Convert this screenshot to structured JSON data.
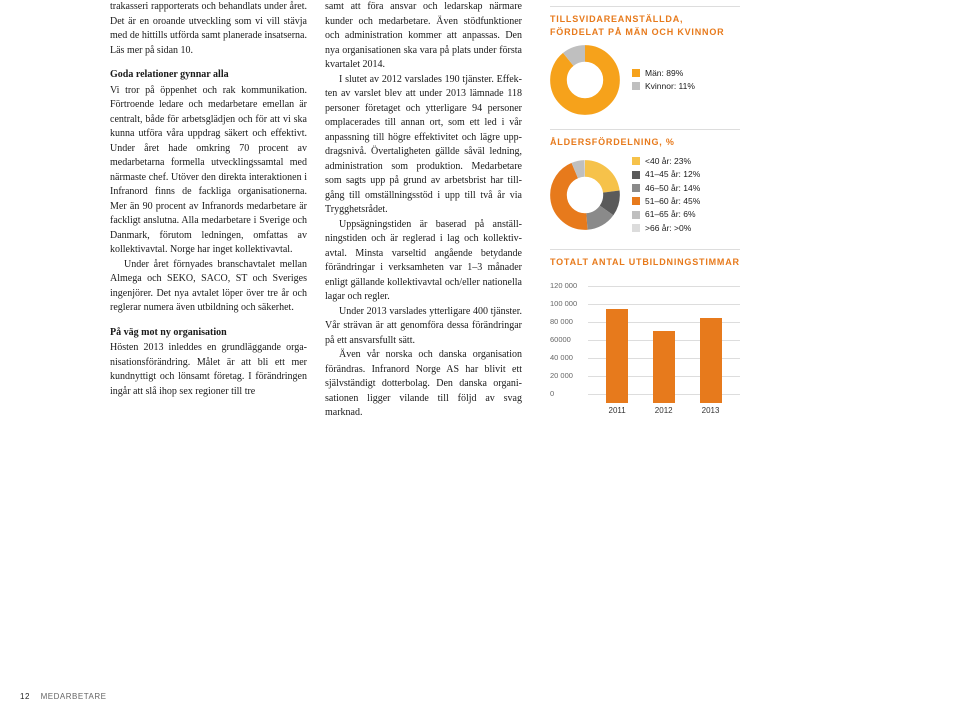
{
  "col1": {
    "p1": "trakasseri rapporterats och behandlats under året. Det är en oroande utveckling som vi vill stävja med de hittills utförda samt planerade insatserna. Läs mer på sidan 10.",
    "h1": "Goda relationer gynnar alla",
    "p2": "Vi tror på öppenhet och rak kommunikation. Förtroende ledare och medarbetare emellan är centralt, både för arbetsglädjen och för att vi ska kunna utföra våra uppdrag säkert och effektivt. Under året hade omkring 70 procent av medarbetarna formella utvecklingssamtal med närmaste chef. Utöver den direkta inter­aktionen i Infranord finns de fackliga organi­sationerna. Mer än 90 procent av Infranords medarbetare är fackligt anslutna. Alla med­arbetare i Sverige och Danmark, förutom led­ningen, omfattas av kollektivavtal. Norge har inget kollektivavtal.",
    "p3": "Under året förnyades branschavtalet mel­lan Almega och SEKO, SACO, ST och Sveriges ingenjörer. Det nya avtalet löper över tre år och reglerar numera även utbildning och säkerhet.",
    "h2": "På väg mot ny organisation",
    "p4": "Hösten 2013 inleddes en grundläggande orga­nisationsförändring. Målet är att bli ett mer kundnyttigt och lönsamt företag. I föränd­ringen ingår att slå ihop sex regioner till tre"
  },
  "col2": {
    "p1": "samt att föra ansvar och ledarskap närmare kunder och medarbetare. Även stödfunktio­ner och administration kommer att anpassas. Den nya organisationen ska vara på plats under första kvartalet 2014.",
    "p2": "I slutet av 2012 varslades 190 tjänster. Effek­ten av varslet blev att under 2013 lämnade 118 personer företaget och ytterligare 94 personer omplacerades till annan ort, som ett led i vår anpassning till högre effektivitet och lägre upp­dragsnivå. Övertaligheten gällde såväl ledning, administration som produktion. Medarbetare som sagts upp på grund av arbetsbrist har till­gång till omställningsstöd i upp till två år via Trygghetsrådet.",
    "p3": "Uppsägningstiden är baserad på anställ­ningstiden och är reglerad i lag och kollektiv­avtal. Minsta varseltid angående betydande förändringar i verksamheten var 1–3 månader enligt gällande kollektivavtal och/eller natio­nella lagar och regler.",
    "p4": "Under 2013 varslades ytterligare 400 tjäns­ter. Vår strävan är att genomföra dessa föränd­ringar på ett ansvarsfullt sätt.",
    "p5": "Även vår norska och danska organisation förändras. Infranord Norge AS har blivit ett självständigt dotterbolag. Den danska organi­sationen ligger vilande till följd av svag marknad."
  },
  "side": {
    "h1": "TILLSVIDAREANSTÄLLDA, FÖRDELAT PÅ MÄN OCH KVINNOR",
    "gender": [
      {
        "label": "Män: 89%",
        "color": "#f6a21b",
        "value": 89
      },
      {
        "label": "Kvinnor: 11%",
        "color": "#bfbfbf",
        "value": 11
      }
    ],
    "h2": "ÅLDERSFÖRDELNING, %",
    "age": [
      {
        "label": "<40 år: 23%",
        "color": "#f6c24a",
        "value": 23
      },
      {
        "label": "41–45 år: 12%",
        "color": "#5a5a5a",
        "value": 12
      },
      {
        "label": "46–50 år: 14%",
        "color": "#8a8a8a",
        "value": 14
      },
      {
        "label": "51–60 år: 45%",
        "color": "#e77a1c",
        "value": 45
      },
      {
        "label": "61–65 år: 6%",
        "color": "#bfbfbf",
        "value": 6
      },
      {
        "label": ">66 år: >0%",
        "color": "#dcdcdc",
        "value": 0.5
      }
    ],
    "h3": "TOTALT ANTAL UTBILDNINGSTIMMAR",
    "bars": {
      "ymax": 120000,
      "yticks": [
        "120 000",
        "100 000",
        "80 000",
        "60000",
        "40 000",
        "20 000",
        "0"
      ],
      "color": "#e77a1c",
      "series": [
        {
          "x": "2011",
          "v": 104000
        },
        {
          "x": "2012",
          "v": 80000
        },
        {
          "x": "2013",
          "v": 95000
        }
      ]
    }
  },
  "footer": {
    "page": "12",
    "section": "MEDARBETARE"
  }
}
